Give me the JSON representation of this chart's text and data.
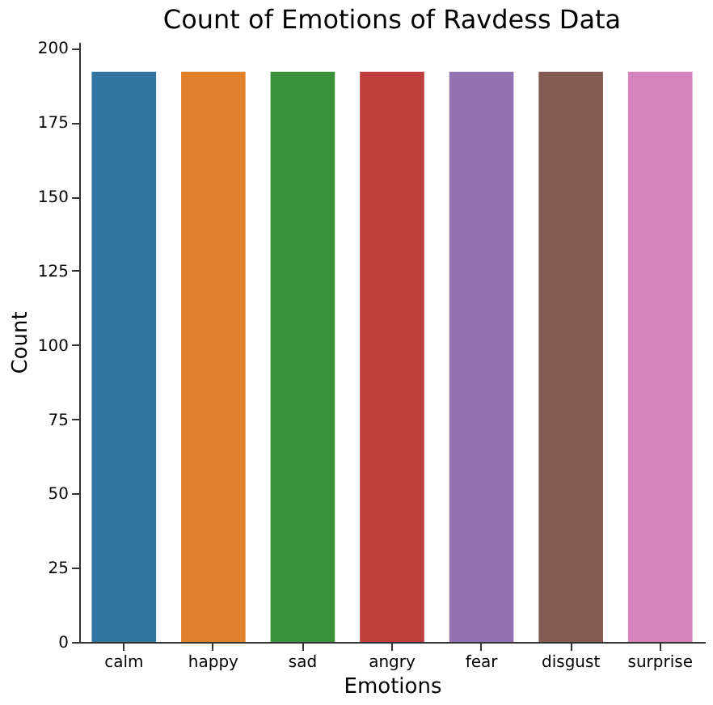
{
  "chart_data": {
    "type": "bar",
    "title": "Count of Emotions of Ravdess Data",
    "xlabel": "Emotions",
    "ylabel": "Count",
    "categories": [
      "calm",
      "happy",
      "sad",
      "angry",
      "fear",
      "disgust",
      "surprise"
    ],
    "values": [
      192,
      192,
      192,
      192,
      192,
      192,
      192
    ],
    "colors": [
      "#3274a1",
      "#e1812c",
      "#3a923a",
      "#c03d3e",
      "#9372b2",
      "#845b53",
      "#d684bd"
    ],
    "ylim": [
      0,
      202
    ],
    "yticks": [
      0,
      25,
      50,
      75,
      100,
      125,
      150,
      175,
      200
    ]
  }
}
